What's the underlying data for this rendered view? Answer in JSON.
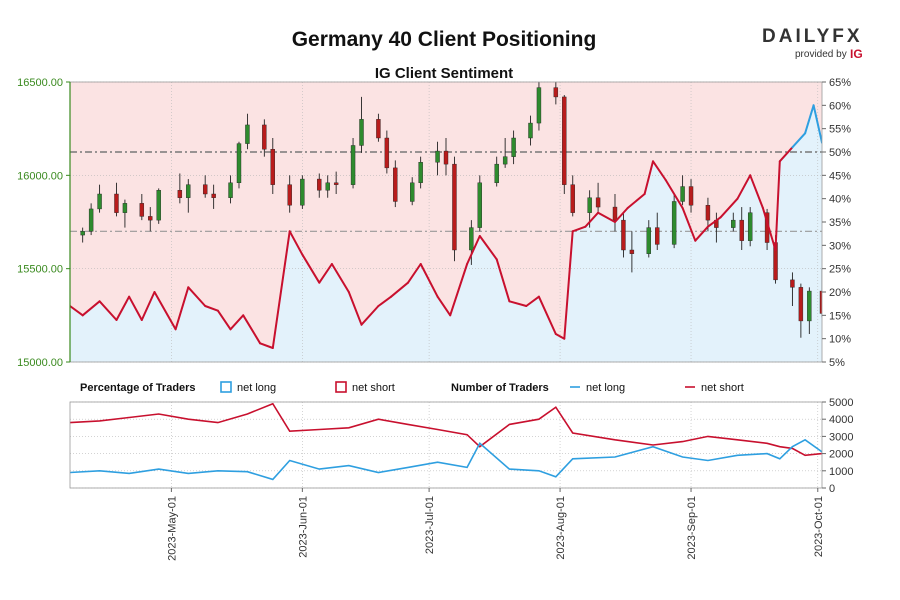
{
  "chart_data": [
    {
      "type": "line",
      "title": "Germany 40 Client Positioning",
      "subtitle": "IG Client Sentiment",
      "price_axis": {
        "ticks": [
          "15000.00",
          "15500.00",
          "16000.00",
          "16500.00"
        ],
        "ylim": [
          15000,
          16500
        ]
      },
      "pct_axis": {
        "ticks": [
          "5%",
          "10%",
          "15%",
          "20%",
          "25%",
          "30%",
          "35%",
          "40%",
          "45%",
          "50%",
          "55%",
          "60%",
          "65%"
        ],
        "ylim": [
          5,
          65
        ],
        "reference_lines": [
          50,
          33
        ]
      },
      "x_ticks": [
        "2023-May-01",
        "2023-Jun-01",
        "2023-Jul-01",
        "2023-Aug-01",
        "2023-Sep-01",
        "2023-Oct-01"
      ],
      "x_range": [
        "2023-04-07",
        "2023-10-02"
      ],
      "net_long_pct": [
        [
          "2023-04-07",
          17
        ],
        [
          "2023-04-10",
          15
        ],
        [
          "2023-04-14",
          18
        ],
        [
          "2023-04-18",
          14
        ],
        [
          "2023-04-21",
          19
        ],
        [
          "2023-04-24",
          14
        ],
        [
          "2023-04-27",
          20
        ],
        [
          "2023-05-02",
          12
        ],
        [
          "2023-05-05",
          21
        ],
        [
          "2023-05-09",
          17
        ],
        [
          "2023-05-12",
          16
        ],
        [
          "2023-05-15",
          12
        ],
        [
          "2023-05-18",
          15
        ],
        [
          "2023-05-22",
          9
        ],
        [
          "2023-05-25",
          8
        ],
        [
          "2023-05-29",
          33
        ],
        [
          "2023-06-01",
          28
        ],
        [
          "2023-06-05",
          22
        ],
        [
          "2023-06-08",
          26
        ],
        [
          "2023-06-12",
          20
        ],
        [
          "2023-06-15",
          13
        ],
        [
          "2023-06-19",
          17
        ],
        [
          "2023-06-22",
          19
        ],
        [
          "2023-06-26",
          22
        ],
        [
          "2023-06-29",
          26
        ],
        [
          "2023-07-03",
          19
        ],
        [
          "2023-07-06",
          15
        ],
        [
          "2023-07-10",
          26
        ],
        [
          "2023-07-13",
          32
        ],
        [
          "2023-07-17",
          27
        ],
        [
          "2023-07-20",
          18
        ],
        [
          "2023-07-24",
          17
        ],
        [
          "2023-07-27",
          19
        ],
        [
          "2023-07-31",
          11
        ],
        [
          "2023-08-02",
          10
        ],
        [
          "2023-08-04",
          33
        ],
        [
          "2023-08-07",
          34
        ],
        [
          "2023-08-10",
          37
        ],
        [
          "2023-08-14",
          35
        ],
        [
          "2023-08-17",
          38
        ],
        [
          "2023-08-21",
          41
        ],
        [
          "2023-08-23",
          48
        ],
        [
          "2023-08-26",
          44
        ],
        [
          "2023-08-30",
          38
        ],
        [
          "2023-09-02",
          31
        ],
        [
          "2023-09-05",
          34
        ],
        [
          "2023-09-08",
          36
        ],
        [
          "2023-09-12",
          40
        ],
        [
          "2023-09-15",
          45
        ],
        [
          "2023-09-18",
          38
        ],
        [
          "2023-09-21",
          29
        ],
        [
          "2023-09-22",
          48
        ],
        [
          "2023-09-25",
          51
        ],
        [
          "2023-09-28",
          54
        ],
        [
          "2023-09-30",
          60
        ],
        [
          "2023-10-02",
          52
        ]
      ],
      "price_ohlc": [
        [
          "2023-04-10",
          15680,
          15720,
          15640,
          15700
        ],
        [
          "2023-04-12",
          15700,
          15850,
          15680,
          15820
        ],
        [
          "2023-04-14",
          15820,
          15950,
          15800,
          15900
        ],
        [
          "2023-04-18",
          15900,
          15960,
          15780,
          15800
        ],
        [
          "2023-04-20",
          15800,
          15870,
          15720,
          15850
        ],
        [
          "2023-04-24",
          15850,
          15900,
          15760,
          15780
        ],
        [
          "2023-04-26",
          15780,
          15830,
          15700,
          15760
        ],
        [
          "2023-04-28",
          15760,
          15930,
          15740,
          15920
        ],
        [
          "2023-05-03",
          15920,
          16010,
          15850,
          15880
        ],
        [
          "2023-05-05",
          15880,
          15980,
          15800,
          15950
        ],
        [
          "2023-05-09",
          15950,
          16000,
          15880,
          15900
        ],
        [
          "2023-05-11",
          15900,
          15950,
          15820,
          15880
        ],
        [
          "2023-05-15",
          15880,
          16000,
          15850,
          15960
        ],
        [
          "2023-05-17",
          15960,
          16180,
          15930,
          16170
        ],
        [
          "2023-05-19",
          16170,
          16330,
          16140,
          16270
        ],
        [
          "2023-05-23",
          16270,
          16300,
          16100,
          16140
        ],
        [
          "2023-05-25",
          16140,
          16200,
          15900,
          15950
        ],
        [
          "2023-05-29",
          15950,
          16000,
          15800,
          15840
        ],
        [
          "2023-06-01",
          15840,
          16000,
          15820,
          15980
        ],
        [
          "2023-06-05",
          15980,
          16010,
          15880,
          15920
        ],
        [
          "2023-06-07",
          15920,
          16000,
          15880,
          15960
        ],
        [
          "2023-06-09",
          15960,
          16020,
          15900,
          15950
        ],
        [
          "2023-06-13",
          15950,
          16200,
          15930,
          16160
        ],
        [
          "2023-06-15",
          16160,
          16420,
          16120,
          16300
        ],
        [
          "2023-06-19",
          16300,
          16330,
          16180,
          16200
        ],
        [
          "2023-06-21",
          16200,
          16240,
          16010,
          16040
        ],
        [
          "2023-06-23",
          16040,
          16080,
          15830,
          15860
        ],
        [
          "2023-06-27",
          15860,
          15990,
          15840,
          15960
        ],
        [
          "2023-06-29",
          15960,
          16100,
          15930,
          16070
        ],
        [
          "2023-07-03",
          16070,
          16180,
          16000,
          16130
        ],
        [
          "2023-07-05",
          16130,
          16200,
          16000,
          16060
        ],
        [
          "2023-07-07",
          16060,
          16100,
          15540,
          15600
        ],
        [
          "2023-07-11",
          15600,
          15760,
          15520,
          15720
        ],
        [
          "2023-07-13",
          15720,
          16000,
          15700,
          15960
        ],
        [
          "2023-07-17",
          15960,
          16100,
          15940,
          16060
        ],
        [
          "2023-07-19",
          16060,
          16200,
          16040,
          16100
        ],
        [
          "2023-07-21",
          16100,
          16240,
          16060,
          16200
        ],
        [
          "2023-07-25",
          16200,
          16320,
          16160,
          16280
        ],
        [
          "2023-07-27",
          16280,
          16520,
          16240,
          16470
        ],
        [
          "2023-07-31",
          16470,
          16540,
          16380,
          16420
        ],
        [
          "2023-08-02",
          16420,
          16430,
          15900,
          15950
        ],
        [
          "2023-08-04",
          15950,
          16000,
          15780,
          15800
        ],
        [
          "2023-08-08",
          15800,
          15920,
          15720,
          15880
        ],
        [
          "2023-08-10",
          15880,
          15960,
          15800,
          15830
        ],
        [
          "2023-08-14",
          15830,
          15900,
          15700,
          15760
        ],
        [
          "2023-08-16",
          15760,
          15800,
          15560,
          15600
        ],
        [
          "2023-08-18",
          15600,
          15700,
          15480,
          15580
        ],
        [
          "2023-08-22",
          15580,
          15760,
          15560,
          15720
        ],
        [
          "2023-08-24",
          15720,
          15800,
          15600,
          15630
        ],
        [
          "2023-08-28",
          15630,
          15900,
          15610,
          15860
        ],
        [
          "2023-08-30",
          15860,
          16000,
          15840,
          15940
        ],
        [
          "2023-09-01",
          15940,
          15980,
          15800,
          15840
        ],
        [
          "2023-09-05",
          15840,
          15880,
          15700,
          15760
        ],
        [
          "2023-09-07",
          15760,
          15800,
          15640,
          15720
        ],
        [
          "2023-09-11",
          15720,
          15800,
          15700,
          15760
        ],
        [
          "2023-09-13",
          15760,
          15830,
          15600,
          15650
        ],
        [
          "2023-09-15",
          15650,
          15830,
          15620,
          15800
        ],
        [
          "2023-09-19",
          15800,
          15820,
          15600,
          15640
        ],
        [
          "2023-09-21",
          15640,
          15680,
          15420,
          15440
        ],
        [
          "2023-09-25",
          15440,
          15480,
          15300,
          15400
        ],
        [
          "2023-09-27",
          15400,
          15420,
          15130,
          15220
        ],
        [
          "2023-09-29",
          15220,
          15400,
          15150,
          15380
        ],
        [
          "2023-10-02",
          15380,
          15500,
          15240,
          15260
        ]
      ],
      "legend": {
        "percentage_heading": "Percentage of Traders",
        "number_heading": "Number of Traders",
        "net_long": "net long",
        "net_short": "net short"
      },
      "traders_axis": {
        "ticks": [
          "0",
          "1000",
          "2000",
          "3000",
          "4000",
          "5000"
        ],
        "ylim": [
          0,
          5000
        ]
      },
      "traders_long": [
        [
          "2023-04-07",
          900
        ],
        [
          "2023-04-14",
          1000
        ],
        [
          "2023-04-21",
          850
        ],
        [
          "2023-04-28",
          1100
        ],
        [
          "2023-05-05",
          850
        ],
        [
          "2023-05-12",
          1000
        ],
        [
          "2023-05-19",
          950
        ],
        [
          "2023-05-25",
          500
        ],
        [
          "2023-05-29",
          1600
        ],
        [
          "2023-06-05",
          1100
        ],
        [
          "2023-06-12",
          1300
        ],
        [
          "2023-06-19",
          900
        ],
        [
          "2023-06-26",
          1200
        ],
        [
          "2023-07-03",
          1500
        ],
        [
          "2023-07-10",
          1200
        ],
        [
          "2023-07-13",
          2600
        ],
        [
          "2023-07-20",
          1100
        ],
        [
          "2023-07-27",
          1000
        ],
        [
          "2023-07-31",
          650
        ],
        [
          "2023-08-04",
          1700
        ],
        [
          "2023-08-14",
          1800
        ],
        [
          "2023-08-23",
          2400
        ],
        [
          "2023-08-30",
          1800
        ],
        [
          "2023-09-05",
          1600
        ],
        [
          "2023-09-12",
          1900
        ],
        [
          "2023-09-19",
          2000
        ],
        [
          "2023-09-22",
          1700
        ],
        [
          "2023-09-25",
          2400
        ],
        [
          "2023-09-28",
          2800
        ],
        [
          "2023-10-02",
          2100
        ]
      ],
      "traders_short": [
        [
          "2023-04-07",
          3800
        ],
        [
          "2023-04-14",
          3900
        ],
        [
          "2023-04-21",
          4100
        ],
        [
          "2023-04-28",
          4300
        ],
        [
          "2023-05-05",
          4000
        ],
        [
          "2023-05-12",
          3800
        ],
        [
          "2023-05-19",
          4300
        ],
        [
          "2023-05-25",
          4900
        ],
        [
          "2023-05-29",
          3300
        ],
        [
          "2023-06-05",
          3400
        ],
        [
          "2023-06-12",
          3500
        ],
        [
          "2023-06-19",
          4000
        ],
        [
          "2023-06-26",
          3700
        ],
        [
          "2023-07-03",
          3400
        ],
        [
          "2023-07-10",
          3100
        ],
        [
          "2023-07-13",
          2400
        ],
        [
          "2023-07-20",
          3700
        ],
        [
          "2023-07-27",
          4000
        ],
        [
          "2023-07-31",
          4700
        ],
        [
          "2023-08-04",
          3200
        ],
        [
          "2023-08-14",
          2800
        ],
        [
          "2023-08-23",
          2500
        ],
        [
          "2023-08-30",
          2700
        ],
        [
          "2023-09-05",
          3000
        ],
        [
          "2023-09-12",
          2800
        ],
        [
          "2023-09-19",
          2600
        ],
        [
          "2023-09-22",
          2400
        ],
        [
          "2023-09-25",
          2300
        ],
        [
          "2023-09-28",
          1900
        ],
        [
          "2023-10-02",
          2000
        ]
      ]
    }
  ],
  "logo": {
    "name": "DAILYFX",
    "tagline": "provided by",
    "brand": "IG"
  },
  "colors": {
    "long": "#2e9fe0",
    "short": "#c8102e",
    "long_zone": "#e3f2fb",
    "short_zone": "#fbe3e3",
    "bull_candle": "#2e8b2e",
    "bear_candle": "#b81c1c",
    "price_axis": "#3a8a1f"
  }
}
